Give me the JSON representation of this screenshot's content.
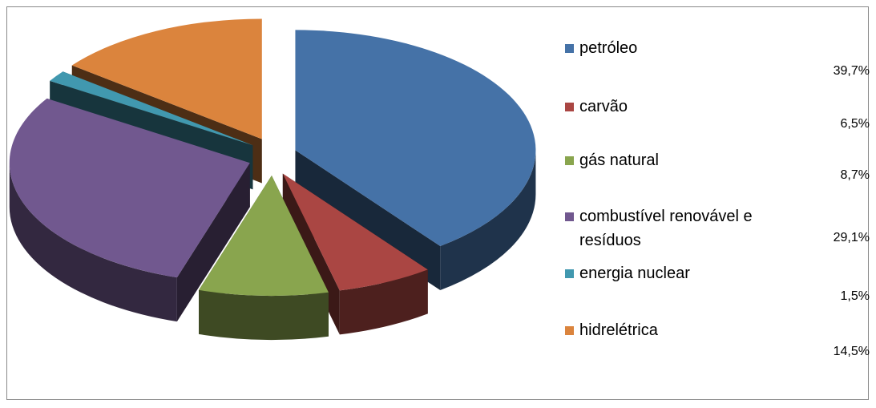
{
  "chart_data": {
    "type": "pie",
    "categories": [
      "petróleo",
      "carvão",
      "gás natural",
      "combustível renovável e resíduos",
      "energia nuclear",
      "hidrelétrica"
    ],
    "values": [
      39.7,
      6.5,
      8.7,
      29.1,
      1.5,
      14.5
    ],
    "value_labels": [
      "39,7%",
      "6,5%",
      "8,7%",
      "29,1%",
      "1,5%",
      "14,5%"
    ],
    "colors": [
      "#4572a7",
      "#aa4643",
      "#89a54e",
      "#71588f",
      "#4198af",
      "#db843d"
    ],
    "legend": "right"
  }
}
